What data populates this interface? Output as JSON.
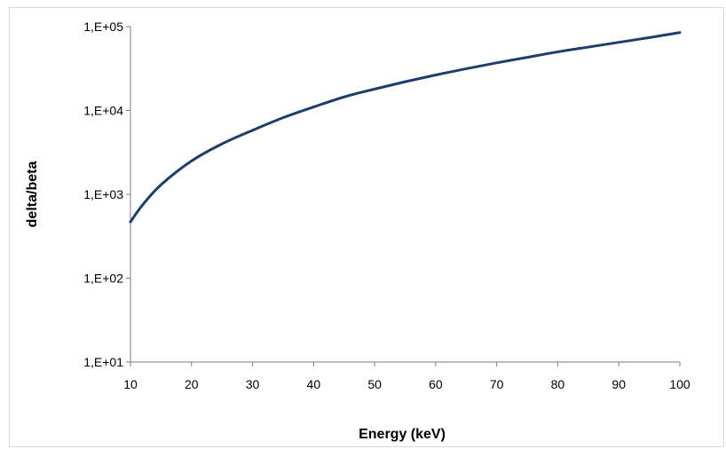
{
  "chart_data": {
    "type": "line",
    "title": "",
    "xlabel": "Energy (keV)",
    "ylabel": "delta/beta",
    "xlim": [
      10,
      100
    ],
    "ylim": [
      10,
      100000
    ],
    "y_scale": "log",
    "grid": false,
    "legend": "none",
    "line_color": "#1f3d6b",
    "x_ticks": [
      10,
      20,
      30,
      40,
      50,
      60,
      70,
      80,
      90,
      100
    ],
    "x_tick_labels": [
      "10",
      "20",
      "30",
      "40",
      "50",
      "60",
      "70",
      "80",
      "90",
      "100"
    ],
    "y_ticks": [
      10,
      100,
      1000,
      10000,
      100000
    ],
    "y_tick_labels": [
      "1,E+01",
      "1,E+02",
      "1,E+03",
      "1,E+04",
      "1,E+05"
    ],
    "series": [
      {
        "x": [
          10,
          12,
          15,
          20,
          25,
          30,
          35,
          40,
          45,
          50,
          55,
          60,
          65,
          70,
          75,
          80,
          85,
          90,
          95,
          100
        ],
        "y": [
          470,
          750,
          1300,
          2500,
          4000,
          5800,
          8200,
          11000,
          14500,
          18000,
          22000,
          26500,
          31500,
          37000,
          43000,
          50000,
          57000,
          65000,
          74000,
          85000
        ]
      }
    ]
  }
}
